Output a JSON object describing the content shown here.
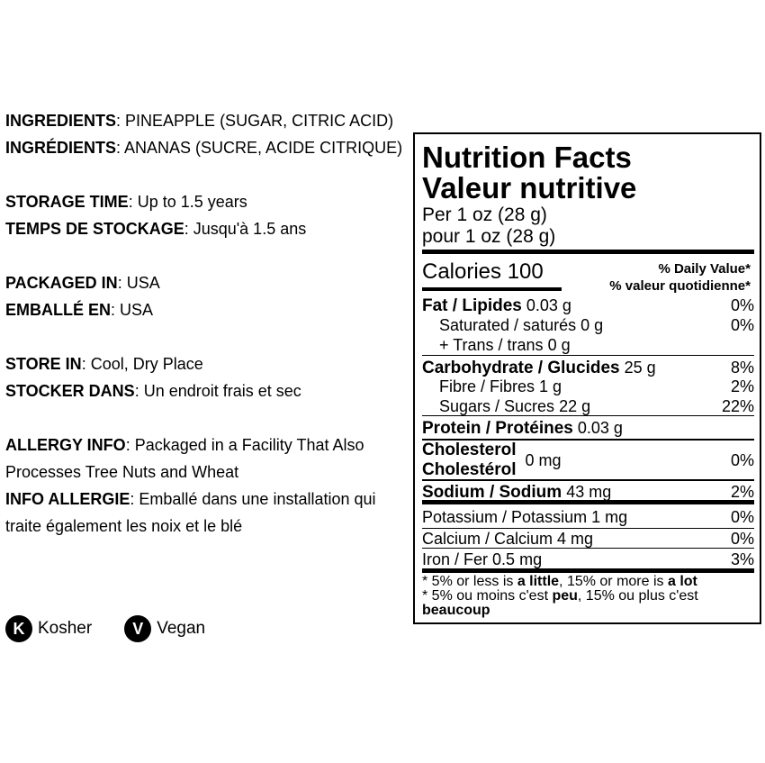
{
  "info": [
    {
      "label": "INGREDIENTS",
      "value": ": PINEAPPLE (SUGAR, CITRIC ACID)"
    },
    {
      "label": "INGRÉDIENTS",
      "value": ": ANANAS (SUCRE, ACIDE CITRIQUE)"
    },
    {
      "label": "STORAGE TIME",
      "value": ": Up to 1.5 years"
    },
    {
      "label": "TEMPS DE STOCKAGE",
      "value": ": Jusqu'à 1.5 ans"
    },
    {
      "label": "PACKAGED IN",
      "value": ": USA"
    },
    {
      "label": "EMBALLÉ EN",
      "value": ": USA"
    },
    {
      "label": "STORE IN",
      "value": ": Cool, Dry Place"
    },
    {
      "label": "STOCKER DANS",
      "value": ": Un endroit frais et sec"
    },
    {
      "label": "ALLERGY INFO",
      "value": ": Packaged in a Facility That Also Processes Tree Nuts and Wheat"
    },
    {
      "label": "INFO ALLERGIE",
      "value": ": Emballé dans une installation qui traite également les noix et le blé"
    }
  ],
  "badges": [
    {
      "letter": "K",
      "label": "Kosher",
      "icon": "kosher-icon"
    },
    {
      "letter": "V",
      "label": "Vegan",
      "icon": "vegan-icon"
    }
  ],
  "nutrition": {
    "title_en": "Nutrition Facts",
    "title_fr": "Valeur nutritive",
    "serving_en": "Per 1 oz (28 g)",
    "serving_fr": "pour 1 oz (28 g)",
    "calories": "Calories 100",
    "dv_en": "% Daily Value*",
    "dv_fr": "% valeur quotidienne*",
    "rows": [
      {
        "name": "Fat / Lipides",
        "amount": "0.03 g",
        "dv": "0%"
      },
      {
        "name": "Saturated / saturés",
        "amount": "0 g",
        "dv": "0%"
      },
      {
        "name": "+ Trans / trans",
        "amount": "0 g",
        "dv": ""
      },
      {
        "name": "Carbohydrate / Glucides",
        "amount": "25 g",
        "dv": "8%"
      },
      {
        "name": "Fibre / Fibres",
        "amount": "1 g",
        "dv": "2%"
      },
      {
        "name": "Sugars / Sucres",
        "amount": "22 g",
        "dv": "22%"
      },
      {
        "name": "Protein / Protéines",
        "amount": "0.03 g",
        "dv": ""
      },
      {
        "name": "Cholesterol",
        "name2": "Cholestérol",
        "amount": "0 mg",
        "dv": "0%"
      },
      {
        "name": "Sodium / Sodium",
        "amount": "43 mg",
        "dv": "2%"
      },
      {
        "name": "Potassium / Potassium",
        "amount": "1 mg",
        "dv": "0%"
      },
      {
        "name": "Calcium / Calcium",
        "amount": "4 mg",
        "dv": "0%"
      },
      {
        "name": "Iron / Fer",
        "amount": "0.5 mg",
        "dv": "3%"
      }
    ],
    "foot_en": [
      "* 5% or less is ",
      "a little",
      ", 15% or more is ",
      "a lot"
    ],
    "foot_fr": [
      "* 5% ou moins c'est ",
      "peu",
      ", 15% ou plus c'est ",
      "beaucoup"
    ]
  }
}
